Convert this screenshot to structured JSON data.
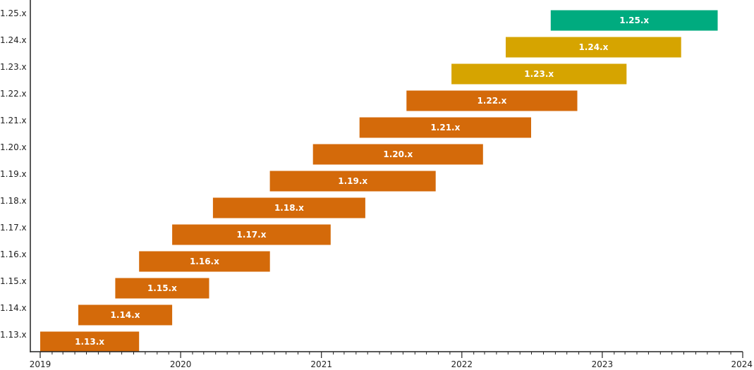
{
  "chart_data": {
    "type": "bar",
    "orientation": "horizontal",
    "title": "",
    "xlabel": "",
    "ylabel": "",
    "x_axis": "date",
    "xlim": [
      "2019-01-01",
      "2024-01-01"
    ],
    "x_ticks": [
      "2019",
      "2020",
      "2021",
      "2022",
      "2023",
      "2024"
    ],
    "grid": false,
    "legend": "none",
    "bars": [
      {
        "label": "1.13.x",
        "start": "2019-01-01",
        "end": "2019-09-15",
        "color": "#d46a0a"
      },
      {
        "label": "1.14.x",
        "start": "2019-04-10",
        "end": "2019-12-10",
        "color": "#d46a0a"
      },
      {
        "label": "1.15.x",
        "start": "2019-07-15",
        "end": "2020-03-15",
        "color": "#d46a0a"
      },
      {
        "label": "1.16.x",
        "start": "2019-09-15",
        "end": "2020-08-20",
        "color": "#d46a0a"
      },
      {
        "label": "1.17.x",
        "start": "2019-12-10",
        "end": "2021-01-25",
        "color": "#d46a0a"
      },
      {
        "label": "1.18.x",
        "start": "2020-03-25",
        "end": "2021-04-25",
        "color": "#d46a0a"
      },
      {
        "label": "1.19.x",
        "start": "2020-08-20",
        "end": "2021-10-25",
        "color": "#d46a0a"
      },
      {
        "label": "1.20.x",
        "start": "2020-12-10",
        "end": "2022-02-25",
        "color": "#d46a0a"
      },
      {
        "label": "1.21.x",
        "start": "2021-04-10",
        "end": "2022-06-30",
        "color": "#d46a0a"
      },
      {
        "label": "1.22.x",
        "start": "2021-08-10",
        "end": "2022-10-28",
        "color": "#d46a0a"
      },
      {
        "label": "1.23.x",
        "start": "2021-12-05",
        "end": "2023-03-05",
        "color": "#d6a400"
      },
      {
        "label": "1.24.x",
        "start": "2022-04-25",
        "end": "2023-07-25",
        "color": "#d6a400"
      },
      {
        "label": "1.25.x",
        "start": "2022-08-20",
        "end": "2023-10-28",
        "color": "#00ab7f"
      }
    ]
  }
}
